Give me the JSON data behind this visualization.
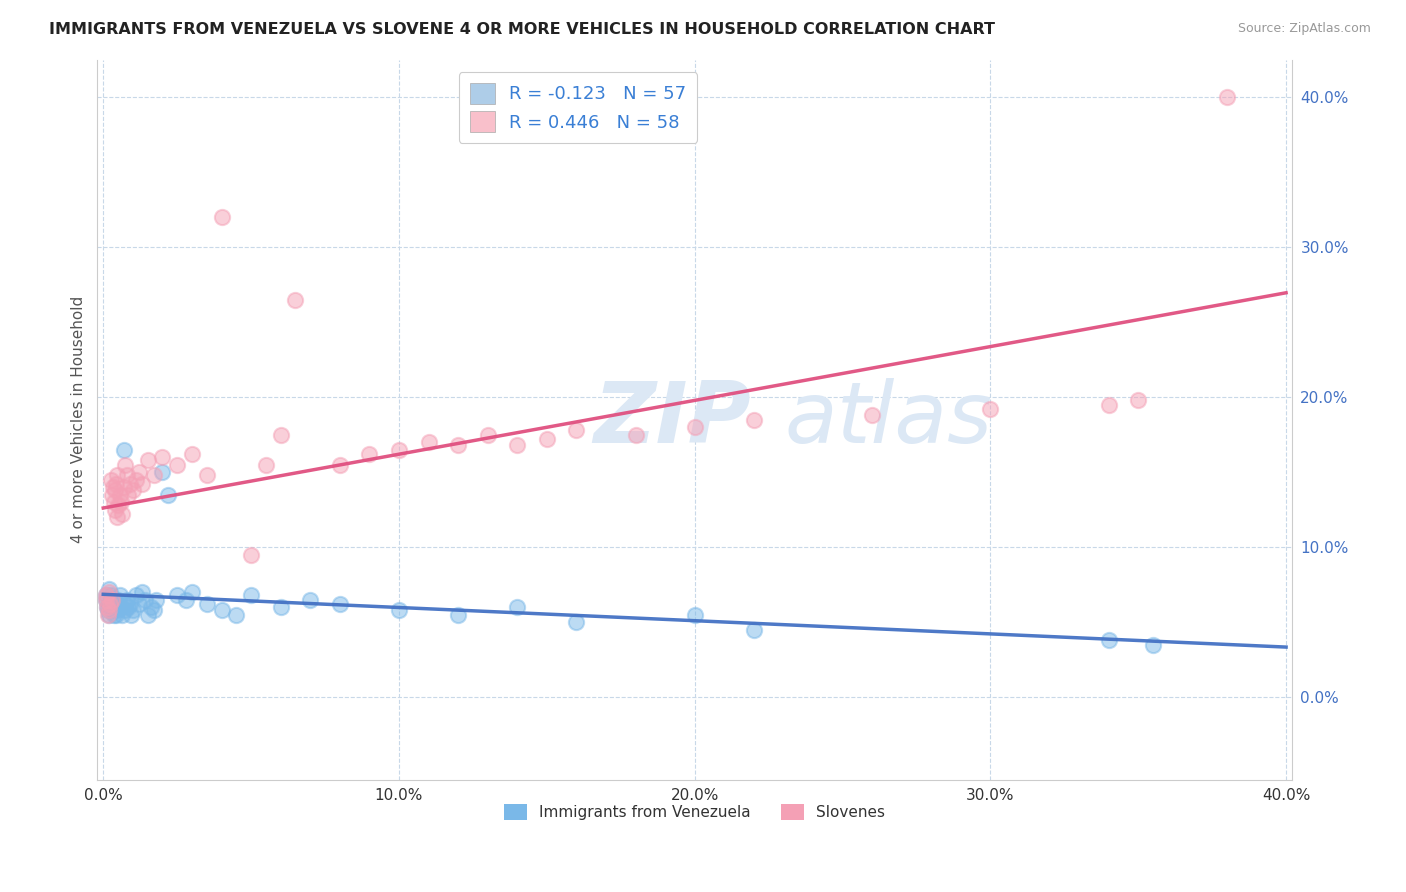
{
  "title": "IMMIGRANTS FROM VENEZUELA VS SLOVENE 4 OR MORE VEHICLES IN HOUSEHOLD CORRELATION CHART",
  "source": "Source: ZipAtlas.com",
  "ylabel": "4 or more Vehicles in Household",
  "xlim": [
    -0.002,
    0.402
  ],
  "ylim": [
    -0.055,
    0.425
  ],
  "xticks": [
    0.0,
    0.1,
    0.2,
    0.3,
    0.4
  ],
  "yticks": [
    0.0,
    0.1,
    0.2,
    0.3,
    0.4
  ],
  "legend_entries": [
    {
      "label": "R = -0.123   N = 57",
      "patch_color": "#aecde8",
      "text_color": "#3a7fd5"
    },
    {
      "label": "R = 0.446   N = 58",
      "patch_color": "#f9c0cb",
      "text_color": "#3a7fd5"
    }
  ],
  "blue_scatter_color": "#7ab8e8",
  "pink_scatter_color": "#f4a0b5",
  "blue_line_color": "#4472c4",
  "pink_line_color": "#e05080",
  "watermark_zip": "ZIP",
  "watermark_atlas": "atlas",
  "watermark_color": "#dce8f5",
  "background_color": "#ffffff",
  "grid_color": "#c8d8e8",
  "right_tick_color": "#4472c4",
  "blue_x": [
    0.0008,
    0.001,
    0.0012,
    0.0015,
    0.0018,
    0.002,
    0.0022,
    0.0025,
    0.0028,
    0.003,
    0.0033,
    0.0035,
    0.0038,
    0.004,
    0.0042,
    0.0045,
    0.0048,
    0.005,
    0.0055,
    0.006,
    0.0065,
    0.007,
    0.0072,
    0.0075,
    0.008,
    0.0085,
    0.009,
    0.0095,
    0.01,
    0.011,
    0.012,
    0.013,
    0.014,
    0.015,
    0.016,
    0.017,
    0.018,
    0.02,
    0.022,
    0.025,
    0.028,
    0.03,
    0.035,
    0.04,
    0.045,
    0.05,
    0.06,
    0.07,
    0.08,
    0.1,
    0.12,
    0.14,
    0.16,
    0.2,
    0.22,
    0.34,
    0.355
  ],
  "blue_y": [
    0.068,
    0.065,
    0.06,
    0.058,
    0.072,
    0.055,
    0.062,
    0.068,
    0.06,
    0.065,
    0.058,
    0.055,
    0.065,
    0.06,
    0.055,
    0.058,
    0.062,
    0.065,
    0.068,
    0.06,
    0.055,
    0.165,
    0.062,
    0.058,
    0.065,
    0.06,
    0.062,
    0.055,
    0.058,
    0.068,
    0.062,
    0.07,
    0.065,
    0.055,
    0.06,
    0.058,
    0.065,
    0.15,
    0.135,
    0.068,
    0.065,
    0.07,
    0.062,
    0.058,
    0.055,
    0.068,
    0.06,
    0.065,
    0.062,
    0.058,
    0.055,
    0.06,
    0.05,
    0.055,
    0.045,
    0.038,
    0.035
  ],
  "pink_x": [
    0.0008,
    0.001,
    0.0012,
    0.0015,
    0.0018,
    0.002,
    0.0022,
    0.0025,
    0.0028,
    0.003,
    0.0033,
    0.0035,
    0.0038,
    0.004,
    0.0042,
    0.0045,
    0.0048,
    0.005,
    0.0055,
    0.006,
    0.0065,
    0.007,
    0.0075,
    0.008,
    0.0085,
    0.009,
    0.01,
    0.011,
    0.012,
    0.013,
    0.015,
    0.017,
    0.02,
    0.025,
    0.03,
    0.035,
    0.04,
    0.05,
    0.055,
    0.06,
    0.065,
    0.08,
    0.09,
    0.1,
    0.11,
    0.12,
    0.13,
    0.14,
    0.15,
    0.16,
    0.18,
    0.2,
    0.22,
    0.26,
    0.3,
    0.34,
    0.35,
    0.38
  ],
  "pink_y": [
    0.065,
    0.068,
    0.06,
    0.055,
    0.07,
    0.058,
    0.062,
    0.145,
    0.065,
    0.135,
    0.14,
    0.13,
    0.138,
    0.125,
    0.142,
    0.148,
    0.12,
    0.128,
    0.135,
    0.13,
    0.122,
    0.14,
    0.155,
    0.148,
    0.135,
    0.142,
    0.138,
    0.145,
    0.15,
    0.142,
    0.158,
    0.148,
    0.16,
    0.155,
    0.162,
    0.148,
    0.32,
    0.095,
    0.155,
    0.175,
    0.265,
    0.155,
    0.162,
    0.165,
    0.17,
    0.168,
    0.175,
    0.168,
    0.172,
    0.178,
    0.175,
    0.18,
    0.185,
    0.188,
    0.192,
    0.195,
    0.198,
    0.4
  ]
}
